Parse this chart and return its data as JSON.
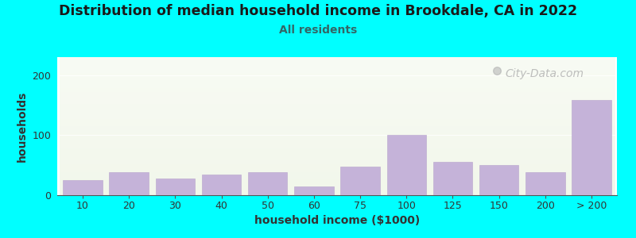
{
  "title": "Distribution of median household income in Brookdale, CA in 2022",
  "subtitle": "All residents",
  "xlabel": "household income ($1000)",
  "ylabel": "households",
  "background_color": "#00FFFF",
  "plot_bg_top": "#f2f7eb",
  "plot_bg_bottom": "#f8fbf4",
  "bar_color": "#c5b3d9",
  "bar_edge_color": "#b8a5cc",
  "watermark": "City-Data.com",
  "categories": [
    "10",
    "20",
    "30",
    "40",
    "50",
    "60",
    "75",
    "100",
    "125",
    "150",
    "200",
    "> 200"
  ],
  "values": [
    25,
    38,
    28,
    35,
    38,
    15,
    48,
    100,
    55,
    50,
    38,
    158
  ],
  "ylim": [
    0,
    230
  ],
  "yticks": [
    0,
    100,
    200
  ],
  "title_fontsize": 12.5,
  "subtitle_fontsize": 10,
  "axis_label_fontsize": 10,
  "tick_fontsize": 9,
  "watermark_fontsize": 10
}
